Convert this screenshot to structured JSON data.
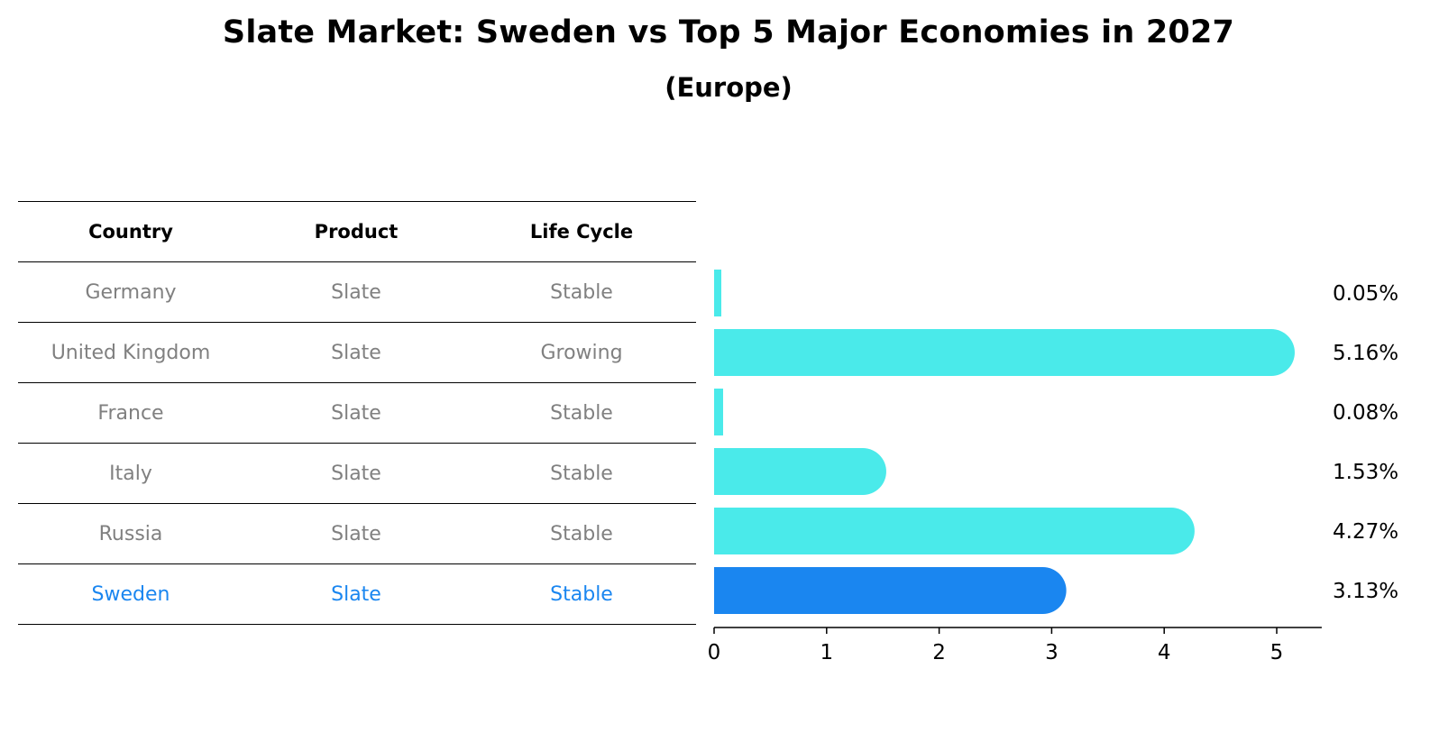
{
  "title": "Slate Market: Sweden vs Top 5 Major Economies in 2027",
  "subtitle": "(Europe)",
  "table": {
    "headers": [
      "Country",
      "Product",
      "Life Cycle"
    ],
    "rows": [
      {
        "country": "Germany",
        "product": "Slate",
        "life_cycle": "Stable"
      },
      {
        "country": "United Kingdom",
        "product": "Slate",
        "life_cycle": "Growing"
      },
      {
        "country": "France",
        "product": "Slate",
        "life_cycle": "Stable"
      },
      {
        "country": "Italy",
        "product": "Slate",
        "life_cycle": "Stable"
      },
      {
        "country": "Russia",
        "product": "Slate",
        "life_cycle": "Stable"
      },
      {
        "country": "Sweden",
        "product": "Slate",
        "life_cycle": "Stable"
      }
    ]
  },
  "chart_data": {
    "type": "bar",
    "orientation": "horizontal",
    "categories": [
      "Germany",
      "United Kingdom",
      "France",
      "Italy",
      "Russia",
      "Sweden"
    ],
    "values": [
      0.05,
      5.16,
      0.08,
      1.53,
      4.27,
      3.13
    ],
    "value_labels": [
      "0.05%",
      "5.16%",
      "0.08%",
      "1.53%",
      "4.27%",
      "3.13%"
    ],
    "xlim": [
      0,
      5.4
    ],
    "xticks": [
      0,
      1,
      2,
      3,
      4,
      5
    ],
    "highlight": "Sweden",
    "colors": {
      "default": "#4aeaea",
      "highlight": "#1a86f0"
    },
    "grid": false,
    "legend": "none"
  }
}
